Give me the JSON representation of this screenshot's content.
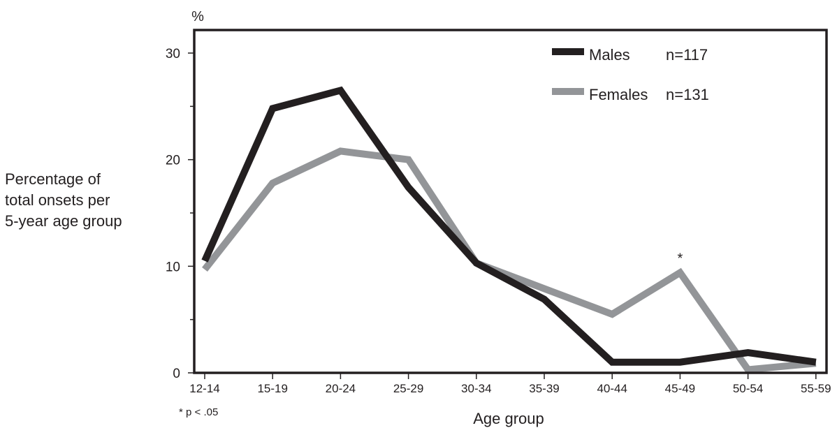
{
  "chart_data": {
    "type": "line",
    "categories": [
      "12-14",
      "15-19",
      "20-24",
      "25-29",
      "30-34",
      "35-39",
      "40-44",
      "45-49",
      "50-54",
      "55-59"
    ],
    "series": [
      {
        "name": "Males",
        "n_label": "n=117",
        "color": "#231f20",
        "values": [
          10.5,
          24.8,
          26.5,
          17.4,
          10.3,
          6.9,
          1.0,
          1.0,
          1.9,
          1.0
        ]
      },
      {
        "name": "Females",
        "n_label": "n=131",
        "color": "#939598",
        "values": [
          9.7,
          17.8,
          20.8,
          20.0,
          10.3,
          7.9,
          5.5,
          9.4,
          0.3,
          0.9
        ]
      }
    ],
    "xlabel": "Age group",
    "ylabel": [
      "Percentage of",
      "total onsets per",
      "5-year age group"
    ],
    "y_unit": "%",
    "ylim": [
      0,
      30
    ],
    "yticks": [
      0,
      10,
      20,
      30
    ],
    "grid": false,
    "legend_position": "top-right",
    "annotation": {
      "text": "*",
      "category": "45-49"
    },
    "footnote": "* p < .05"
  }
}
